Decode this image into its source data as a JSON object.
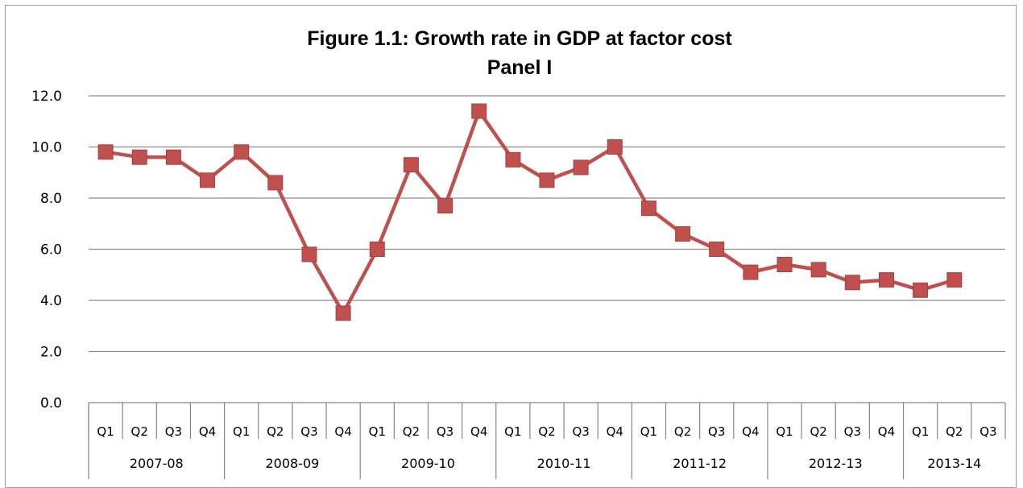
{
  "chart_data": {
    "type": "line",
    "title": "Figure 1.1:  Growth rate in GDP at factor cost",
    "subtitle": "Panel I",
    "xlabel": "",
    "ylabel": "",
    "ylim": [
      0,
      12
    ],
    "yticks": [
      "0.0",
      "2.0",
      "4.0",
      "6.0",
      "8.0",
      "10.0",
      "12.0"
    ],
    "grid": true,
    "legend": "none",
    "categories": [
      "Q1",
      "Q2",
      "Q3",
      "Q4",
      "Q1",
      "Q2",
      "Q3",
      "Q4",
      "Q1",
      "Q2",
      "Q3",
      "Q4",
      "Q1",
      "Q2",
      "Q3",
      "Q4",
      "Q1",
      "Q2",
      "Q3",
      "Q4",
      "Q1",
      "Q2",
      "Q3",
      "Q4",
      "Q1",
      "Q2",
      "Q3"
    ],
    "year_groups": [
      {
        "label": "2007-08",
        "count": 4
      },
      {
        "label": "2008-09",
        "count": 4
      },
      {
        "label": "2009-10",
        "count": 4
      },
      {
        "label": "2010-11",
        "count": 4
      },
      {
        "label": "2011-12",
        "count": 4
      },
      {
        "label": "2012-13",
        "count": 4
      },
      {
        "label": "2013-14",
        "count": 3
      }
    ],
    "series": [
      {
        "color": "#c0504d",
        "marker": "square",
        "values": [
          9.8,
          9.6,
          9.6,
          8.7,
          9.8,
          8.6,
          5.8,
          3.5,
          6.0,
          9.3,
          7.7,
          11.4,
          9.5,
          8.7,
          9.2,
          10.0,
          7.6,
          6.6,
          6.0,
          5.1,
          5.4,
          5.2,
          4.7,
          4.8,
          4.4,
          4.8,
          null
        ]
      }
    ]
  }
}
